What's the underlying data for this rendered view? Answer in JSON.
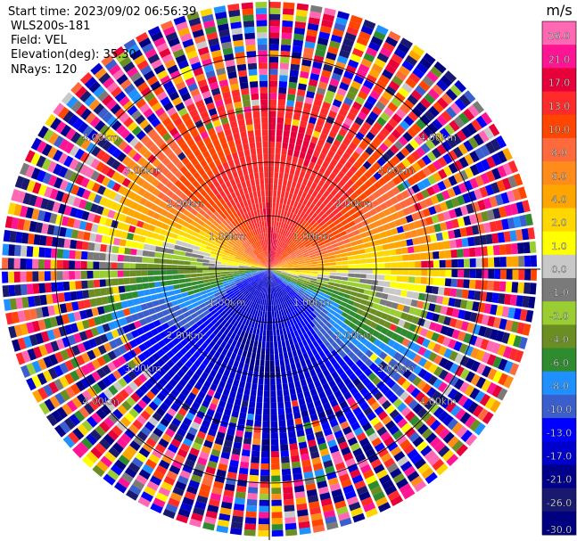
{
  "header": {
    "start_time": "Start time: 2023/09/02 06:56:39",
    "instrument": "WLS200s-181",
    "field": "Field: VEL",
    "elevation": "Elevation(deg): 35.30",
    "nrays": "NRays: 120"
  },
  "chart_data": {
    "type": "heatmap",
    "projection": "polar-ppi",
    "field": "VEL",
    "units": "m/s",
    "nrays": 120,
    "max_range_km": 5.0,
    "range_ring_labels": [
      "1.00km",
      "2.00km",
      "3.00km",
      "4.00km"
    ],
    "colorbar": {
      "title": "m/s",
      "tick_labels": [
        "26.0",
        "21.0",
        "17.0",
        "13.0",
        "10.0",
        "8.0",
        "6.0",
        "4.0",
        "2.0",
        "1.0",
        "0.0",
        "-1.0",
        "-2.0",
        "-4.0",
        "-6.0",
        "-8.0",
        "-10.0",
        "-13.0",
        "-17.0",
        "-21.0",
        "-26.0",
        "-30.0"
      ],
      "bounds": [
        30,
        26,
        21,
        17,
        13,
        10,
        8,
        6,
        4,
        2,
        1,
        0,
        -1,
        -2,
        -4,
        -6,
        -8,
        -10,
        -13,
        -17,
        -21,
        -26,
        -30
      ],
      "colors": [
        "#ff69b4",
        "#ff1493",
        "#e8003a",
        "#ff2b2b",
        "#ff4500",
        "#ff6a3d",
        "#ff8c1a",
        "#ffa500",
        "#ffd700",
        "#ffff00",
        "#c8c8c8",
        "#7a7a7a",
        "#9acd32",
        "#6b8e23",
        "#2e8b2e",
        "#1e90ff",
        "#3a5fcd",
        "#0000ff",
        "#0000cd",
        "#00008b",
        "#191970",
        "#000080"
      ]
    }
  }
}
